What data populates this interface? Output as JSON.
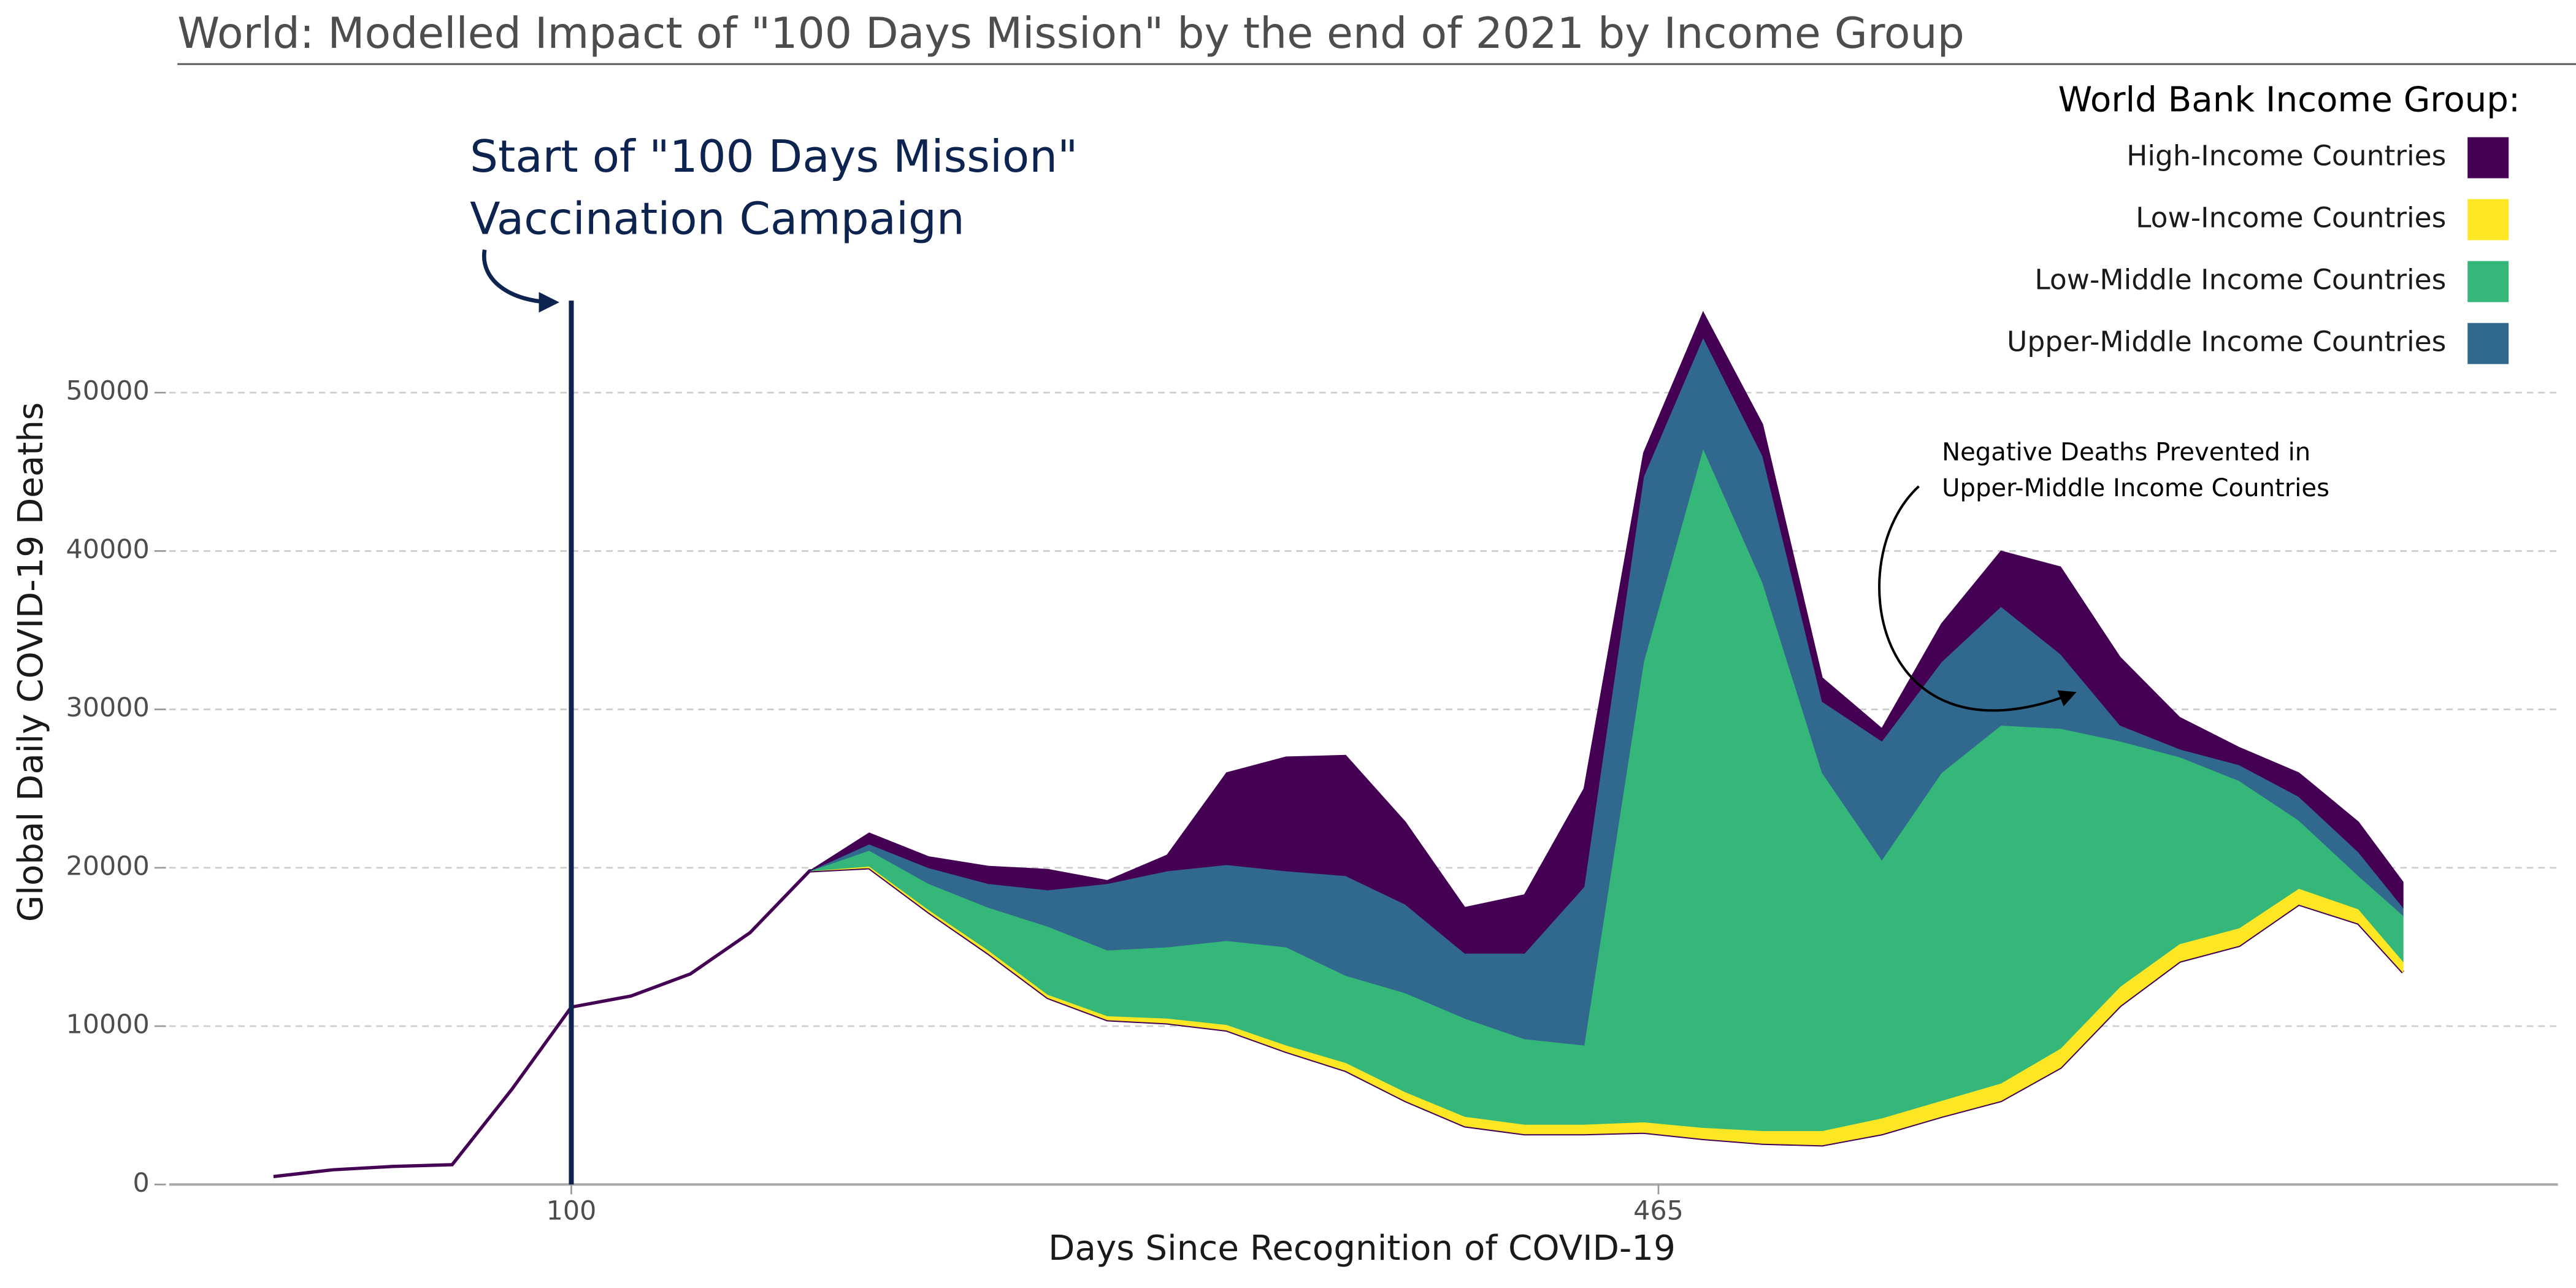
{
  "chart_data": {
    "type": "ribbon",
    "title": "World: Modelled Impact of \"100 Days Mission\" by the end of 2021 by Income Group",
    "x_label": "Days Since Recognition of COVID-19",
    "y_label": "Global Daily COVID-19 Deaths",
    "legend_title": "World Bank Income Group:",
    "legend_position": "top-right",
    "grid": true,
    "x": [
      0,
      20,
      40,
      60,
      80,
      100,
      120,
      140,
      160,
      180,
      200,
      220,
      240,
      260,
      280,
      300,
      320,
      340,
      360,
      380,
      400,
      420,
      440,
      460,
      480,
      500,
      520,
      540,
      560,
      580,
      600,
      620,
      640,
      660,
      680,
      700,
      715
    ],
    "xlim": [
      -35,
      767
    ],
    "xticks": [
      100,
      465
    ],
    "ylim": [
      0,
      60000
    ],
    "yticks": [
      0,
      10000,
      20000,
      30000,
      40000,
      50000
    ],
    "baseline": {
      "color": "#440154",
      "values": [
        500,
        930,
        1140,
        1250,
        6000,
        11200,
        11900,
        13300,
        15900,
        19800,
        20000,
        17200,
        14600,
        11800,
        10400,
        10200,
        9750,
        8400,
        7200,
        5300,
        3700,
        3200,
        3200,
        3300,
        2900,
        2600,
        2500,
        3200,
        4300,
        5300,
        7400,
        11300,
        14100,
        15100,
        17700,
        16500,
        13400
      ]
    },
    "series": [
      {
        "name": "Low-Income Countries",
        "color": "#fde725",
        "values": [
          null,
          null,
          null,
          null,
          null,
          null,
          null,
          null,
          null,
          0,
          100,
          150,
          200,
          200,
          250,
          300,
          350,
          400,
          500,
          550,
          600,
          600,
          600,
          650,
          700,
          800,
          900,
          1000,
          1000,
          1100,
          1200,
          1200,
          1100,
          1100,
          1000,
          900,
          700
        ]
      },
      {
        "name": "Low-Middle Income Countries",
        "color": "#35b779",
        "values": [
          null,
          null,
          null,
          null,
          null,
          null,
          null,
          null,
          null,
          0,
          1000,
          1650,
          2700,
          4300,
          4150,
          4500,
          5300,
          6200,
          5500,
          6250,
          6200,
          5400,
          5000,
          29050,
          42900,
          34600,
          22600,
          16300,
          20700,
          22600,
          20200,
          15500,
          11800,
          9300,
          4300,
          2100,
          2900
        ]
      },
      {
        "name": "Upper-Middle Income Countries",
        "color": "#31688e",
        "values": [
          null,
          null,
          null,
          null,
          null,
          null,
          null,
          null,
          null,
          0,
          400,
          1000,
          1500,
          2300,
          4200,
          4800,
          4800,
          4800,
          6300,
          5600,
          4100,
          5400,
          10000,
          11700,
          7000,
          8000,
          4500,
          7500,
          7000,
          7500,
          4700,
          1000,
          500,
          1000,
          1500,
          1500,
          500
        ]
      },
      {
        "name": "High-Income Countries",
        "color": "#440154",
        "values": [
          null,
          null,
          null,
          null,
          null,
          null,
          null,
          null,
          null,
          0,
          700,
          700,
          1100,
          1300,
          200,
          1000,
          5800,
          7200,
          7600,
          5200,
          2900,
          3700,
          6200,
          1500,
          1600,
          2000,
          1500,
          800,
          2400,
          3500,
          5500,
          4300,
          2000,
          1100,
          1500,
          1900,
          1600
        ]
      }
    ],
    "vline": {
      "x": 100,
      "color": "#0d2350",
      "label": [
        "Start of \"100 Days Mission\"",
        "Vaccination Campaign"
      ]
    },
    "annotation": [
      "Negative Deaths Prevented in",
      "Upper-Middle Income Countries"
    ]
  }
}
